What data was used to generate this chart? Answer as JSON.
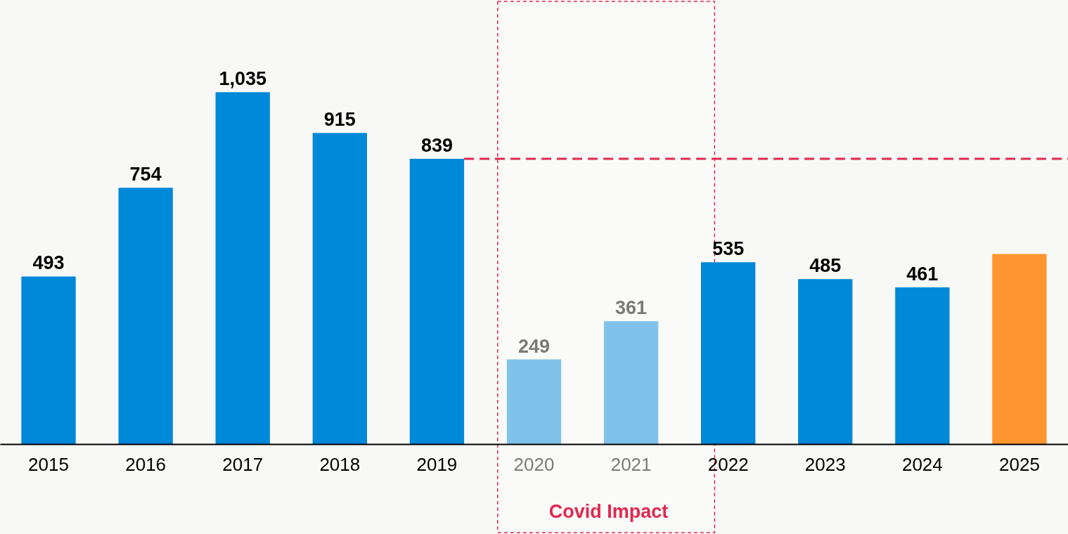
{
  "chart_data": {
    "type": "bar",
    "categories": [
      "2015",
      "2016",
      "2017",
      "2018",
      "2019",
      "2020",
      "2021",
      "2022",
      "2023",
      "2024",
      "2025"
    ],
    "values": [
      493,
      754,
      1035,
      915,
      839,
      249,
      361,
      535,
      485,
      461,
      559
    ],
    "value_labels": [
      "493",
      "754",
      "1,035",
      "915",
      "839",
      "249",
      "361",
      "535",
      "485",
      "461",
      null
    ],
    "colors": [
      "#0088d9",
      "#0088d9",
      "#0088d9",
      "#0088d9",
      "#0088d9",
      "#80c2ea",
      "#80c2ea",
      "#0088d9",
      "#0088d9",
      "#0088d9",
      "#ff952e"
    ],
    "ref_lines": [
      {
        "axis": "y",
        "value": 839,
        "color": "#e0284f",
        "line_style": "dashed"
      }
    ],
    "bands": [
      {
        "axis": "x",
        "from": "2020",
        "to": "2022",
        "label": "Covid Impact",
        "color": "#e0284f"
      }
    ],
    "data_labels": false
  }
}
